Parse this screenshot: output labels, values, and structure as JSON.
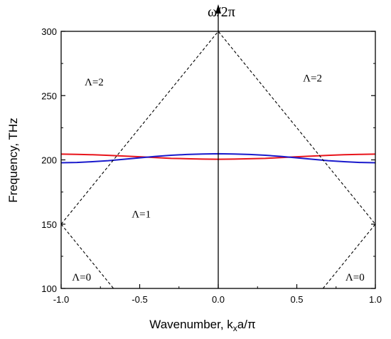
{
  "chart_data": {
    "type": "line",
    "xlabel": {
      "main": "Wavenumber, k",
      "sub": "x",
      "tail": "a/π"
    },
    "ylabel": "Frequency, THz",
    "top_axis_label": "ω/2π",
    "xlim": [
      -1.0,
      1.0
    ],
    "ylim": [
      100,
      300
    ],
    "xticks": [
      "-1.0",
      "-0.5",
      "0.0",
      "0.5",
      "1.0"
    ],
    "yticks": [
      "100",
      "150",
      "200",
      "250",
      "300"
    ],
    "grid": false,
    "series": [
      {
        "color": "#e8141b",
        "style": "solid",
        "x": [
          -1.0,
          -0.9,
          -0.8,
          -0.7,
          -0.6,
          -0.5,
          -0.4,
          -0.3,
          -0.2,
          -0.1,
          0.0,
          0.1,
          0.2,
          0.3,
          0.4,
          0.5,
          0.6,
          0.7,
          0.8,
          0.9,
          1.0
        ],
        "y": [
          204.5,
          204.3,
          204.0,
          203.5,
          203.0,
          202.4,
          201.8,
          201.2,
          200.9,
          200.6,
          200.5,
          200.6,
          200.9,
          201.2,
          201.8,
          202.4,
          203.0,
          203.5,
          204.0,
          204.3,
          204.5
        ]
      },
      {
        "color": "#1a1acc",
        "style": "solid",
        "x": [
          -1.0,
          -0.9,
          -0.8,
          -0.7,
          -0.6,
          -0.5,
          -0.4,
          -0.3,
          -0.2,
          -0.1,
          0.0,
          0.1,
          0.2,
          0.3,
          0.4,
          0.5,
          0.6,
          0.7,
          0.8,
          0.9,
          1.0
        ],
        "y": [
          197.8,
          198.0,
          198.6,
          199.4,
          200.5,
          201.6,
          202.7,
          203.6,
          204.2,
          204.6,
          204.8,
          204.6,
          204.2,
          203.6,
          202.7,
          201.6,
          200.5,
          199.4,
          198.6,
          198.0,
          197.8
        ]
      },
      {
        "color": "#000000",
        "style": "dashed",
        "x": [
          -1.0,
          0.0,
          1.0
        ],
        "y": [
          150,
          300,
          150
        ]
      },
      {
        "color": "#000000",
        "style": "dashed",
        "x": [
          -1.0,
          -0.6667
        ],
        "y": [
          150,
          100
        ]
      },
      {
        "color": "#000000",
        "style": "dashed",
        "x": [
          0.6667,
          1.0
        ],
        "y": [
          100,
          150
        ]
      }
    ],
    "annotations": [
      {
        "text": "Λ=2",
        "x": -0.79,
        "y": 258
      },
      {
        "text": "Λ=2",
        "x": 0.6,
        "y": 261
      },
      {
        "text": "Λ=1",
        "x": -0.49,
        "y": 155
      },
      {
        "text": "Λ=0",
        "x": -0.87,
        "y": 106
      },
      {
        "text": "Λ=0",
        "x": 0.87,
        "y": 106
      }
    ]
  }
}
